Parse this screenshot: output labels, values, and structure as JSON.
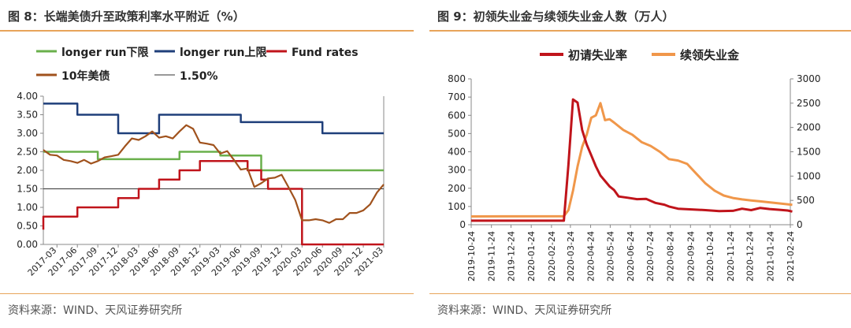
{
  "left": {
    "title": "图 8：长端美债升至政策利率水平附近（%）",
    "source": "资料来源：WIND、天风证券研究所",
    "chart_data": {
      "type": "line",
      "x_start": "2017-01",
      "x_end": "2021-03",
      "xticks": [
        "2017-03",
        "2017-06",
        "2017-09",
        "2017-12",
        "2018-03",
        "2018-06",
        "2018-09",
        "2018-12",
        "2019-03",
        "2019-06",
        "2019-09",
        "2019-12",
        "2020-03",
        "2020-06",
        "2020-09",
        "2020-12",
        "2021-03"
      ],
      "ylim": [
        0,
        4.0
      ],
      "yticks": [
        "0.00",
        "0.50",
        "1.00",
        "1.50",
        "2.00",
        "2.50",
        "3.00",
        "3.50",
        "4.00"
      ],
      "legend": [
        "longer run下限",
        "longer run上限",
        "Fund rates",
        "10年美债",
        "1.50%"
      ],
      "series": [
        {
          "name": "longer run下限",
          "color": "#6ab04c",
          "step": true,
          "points": [
            [
              "2017-01",
              2.5
            ],
            [
              "2017-09",
              2.5
            ],
            [
              "2017-09",
              2.3
            ],
            [
              "2018-09",
              2.3
            ],
            [
              "2018-09",
              2.5
            ],
            [
              "2019-03",
              2.5
            ],
            [
              "2019-03",
              2.4
            ],
            [
              "2019-09",
              2.4
            ],
            [
              "2019-09",
              2.0
            ],
            [
              "2021-03",
              2.0
            ]
          ]
        },
        {
          "name": "longer run上限",
          "color": "#1f3f7a",
          "step": true,
          "points": [
            [
              "2017-01",
              3.8
            ],
            [
              "2017-06",
              3.8
            ],
            [
              "2017-06",
              3.5
            ],
            [
              "2017-12",
              3.5
            ],
            [
              "2017-12",
              3.0
            ],
            [
              "2018-06",
              3.0
            ],
            [
              "2018-06",
              3.5
            ],
            [
              "2019-06",
              3.5
            ],
            [
              "2019-06",
              3.3
            ],
            [
              "2020-06",
              3.3
            ],
            [
              "2020-06",
              3.0
            ],
            [
              "2021-03",
              3.0
            ]
          ]
        },
        {
          "name": "Fund rates",
          "color": "#c0141b",
          "step": true,
          "points": [
            [
              "2017-01",
              0.4
            ],
            [
              "2017-01",
              0.75
            ],
            [
              "2017-06",
              0.75
            ],
            [
              "2017-06",
              1.0
            ],
            [
              "2017-12",
              1.0
            ],
            [
              "2017-12",
              1.25
            ],
            [
              "2018-03",
              1.25
            ],
            [
              "2018-03",
              1.5
            ],
            [
              "2018-06",
              1.5
            ],
            [
              "2018-06",
              1.75
            ],
            [
              "2018-09",
              1.75
            ],
            [
              "2018-09",
              2.0
            ],
            [
              "2018-12",
              2.0
            ],
            [
              "2018-12",
              2.25
            ],
            [
              "2019-07",
              2.25
            ],
            [
              "2019-07",
              2.0
            ],
            [
              "2019-09",
              2.0
            ],
            [
              "2019-09",
              1.75
            ],
            [
              "2019-10",
              1.75
            ],
            [
              "2019-10",
              1.5
            ],
            [
              "2020-03",
              1.5
            ],
            [
              "2020-03",
              0.0
            ],
            [
              "2021-03",
              0.0
            ]
          ]
        },
        {
          "name": "10年美债",
          "color": "#a0521d",
          "step": false,
          "points": [
            [
              "2017-01",
              2.55
            ],
            [
              "2017-02",
              2.42
            ],
            [
              "2017-03",
              2.4
            ],
            [
              "2017-04",
              2.28
            ],
            [
              "2017-05",
              2.25
            ],
            [
              "2017-06",
              2.2
            ],
            [
              "2017-07",
              2.28
            ],
            [
              "2017-08",
              2.18
            ],
            [
              "2017-09",
              2.25
            ],
            [
              "2017-10",
              2.35
            ],
            [
              "2017-11",
              2.38
            ],
            [
              "2017-12",
              2.42
            ],
            [
              "2018-01",
              2.65
            ],
            [
              "2018-02",
              2.86
            ],
            [
              "2018-03",
              2.82
            ],
            [
              "2018-04",
              2.92
            ],
            [
              "2018-05",
              3.05
            ],
            [
              "2018-06",
              2.88
            ],
            [
              "2018-07",
              2.92
            ],
            [
              "2018-08",
              2.86
            ],
            [
              "2018-09",
              3.05
            ],
            [
              "2018-10",
              3.22
            ],
            [
              "2018-11",
              3.12
            ],
            [
              "2018-12",
              2.75
            ],
            [
              "2019-01",
              2.72
            ],
            [
              "2019-02",
              2.68
            ],
            [
              "2019-03",
              2.45
            ],
            [
              "2019-04",
              2.52
            ],
            [
              "2019-05",
              2.28
            ],
            [
              "2019-06",
              2.02
            ],
            [
              "2019-07",
              2.05
            ],
            [
              "2019-08",
              1.55
            ],
            [
              "2019-09",
              1.65
            ],
            [
              "2019-10",
              1.78
            ],
            [
              "2019-11",
              1.8
            ],
            [
              "2019-12",
              1.88
            ],
            [
              "2020-01",
              1.55
            ],
            [
              "2020-02",
              1.2
            ],
            [
              "2020-03",
              0.65
            ],
            [
              "2020-04",
              0.65
            ],
            [
              "2020-05",
              0.68
            ],
            [
              "2020-06",
              0.65
            ],
            [
              "2020-07",
              0.58
            ],
            [
              "2020-08",
              0.68
            ],
            [
              "2020-09",
              0.68
            ],
            [
              "2020-10",
              0.85
            ],
            [
              "2020-11",
              0.85
            ],
            [
              "2020-12",
              0.92
            ],
            [
              "2021-01",
              1.08
            ],
            [
              "2021-02",
              1.4
            ],
            [
              "2021-03",
              1.62
            ]
          ]
        },
        {
          "name": "1.50%",
          "color": "#333333",
          "step": false,
          "points": [
            [
              "2017-01",
              1.5
            ],
            [
              "2021-03",
              1.5
            ]
          ]
        }
      ]
    }
  },
  "right": {
    "title": "图 9：初领失业金与续领失业金人数（万人）",
    "source": "资料来源：WIND、天风证券研究所",
    "chart_data": {
      "type": "line",
      "x_start": "2019-10-24",
      "x_end": "2021-02-24",
      "xticks": [
        "2019-10-24",
        "2019-11-24",
        "2019-12-24",
        "2020-01-24",
        "2020-02-24",
        "2020-03-24",
        "2020-04-24",
        "2020-05-24",
        "2020-06-24",
        "2020-07-24",
        "2020-08-24",
        "2020-09-24",
        "2020-10-24",
        "2020-11-24",
        "2020-12-24",
        "2021-01-24",
        "2021-02-24"
      ],
      "ylim_left": [
        0,
        800
      ],
      "yticks_left": [
        "0",
        "100",
        "200",
        "300",
        "400",
        "500",
        "600",
        "700",
        "800"
      ],
      "ylim_right": [
        0,
        3000
      ],
      "yticks_right": [
        "0",
        "500",
        "1000",
        "1500",
        "2000",
        "2500",
        "3000"
      ],
      "legend": [
        "初请失业率",
        "续领失业金"
      ],
      "series": [
        {
          "name": "初请失业率",
          "color": "#c0141b",
          "axis": "left",
          "points": [
            [
              "2019-10-24",
              22
            ],
            [
              "2020-03-14",
              22
            ],
            [
              "2020-03-21",
              330
            ],
            [
              "2020-03-28",
              687
            ],
            [
              "2020-04-04",
              670
            ],
            [
              "2020-04-11",
              520
            ],
            [
              "2020-04-18",
              440
            ],
            [
              "2020-04-25",
              380
            ],
            [
              "2020-05-02",
              320
            ],
            [
              "2020-05-09",
              270
            ],
            [
              "2020-05-16",
              240
            ],
            [
              "2020-05-23",
              210
            ],
            [
              "2020-05-30",
              190
            ],
            [
              "2020-06-06",
              155
            ],
            [
              "2020-06-20",
              148
            ],
            [
              "2020-07-04",
              140
            ],
            [
              "2020-07-18",
              142
            ],
            [
              "2020-08-01",
              120
            ],
            [
              "2020-08-15",
              110
            ],
            [
              "2020-08-22",
              100
            ],
            [
              "2020-09-05",
              88
            ],
            [
              "2020-09-26",
              84
            ],
            [
              "2020-10-17",
              80
            ],
            [
              "2020-11-07",
              75
            ],
            [
              "2020-11-28",
              76
            ],
            [
              "2020-12-12",
              88
            ],
            [
              "2020-12-26",
              80
            ],
            [
              "2021-01-09",
              92
            ],
            [
              "2021-01-23",
              86
            ],
            [
              "2021-02-06",
              82
            ],
            [
              "2021-02-20",
              78
            ],
            [
              "2021-02-27",
              72
            ]
          ]
        },
        {
          "name": "续领失业金",
          "color": "#f0974a",
          "axis": "right",
          "points": [
            [
              "2019-10-24",
              170
            ],
            [
              "2020-03-14",
              175
            ],
            [
              "2020-03-21",
              300
            ],
            [
              "2020-03-28",
              700
            ],
            [
              "2020-04-04",
              1200
            ],
            [
              "2020-04-11",
              1600
            ],
            [
              "2020-04-18",
              1850
            ],
            [
              "2020-04-25",
              2200
            ],
            [
              "2020-05-02",
              2250
            ],
            [
              "2020-05-09",
              2500
            ],
            [
              "2020-05-16",
              2150
            ],
            [
              "2020-05-23",
              2170
            ],
            [
              "2020-05-30",
              2100
            ],
            [
              "2020-06-13",
              1950
            ],
            [
              "2020-06-27",
              1850
            ],
            [
              "2020-07-11",
              1700
            ],
            [
              "2020-07-25",
              1620
            ],
            [
              "2020-08-08",
              1500
            ],
            [
              "2020-08-22",
              1350
            ],
            [
              "2020-09-05",
              1320
            ],
            [
              "2020-09-19",
              1250
            ],
            [
              "2020-10-03",
              1050
            ],
            [
              "2020-10-17",
              850
            ],
            [
              "2020-10-31",
              700
            ],
            [
              "2020-11-14",
              600
            ],
            [
              "2020-11-28",
              550
            ],
            [
              "2020-12-12",
              520
            ],
            [
              "2020-12-26",
              500
            ],
            [
              "2021-01-09",
              480
            ],
            [
              "2021-01-23",
              460
            ],
            [
              "2021-02-06",
              440
            ],
            [
              "2021-02-20",
              420
            ],
            [
              "2021-02-27",
              410
            ]
          ]
        }
      ]
    }
  }
}
